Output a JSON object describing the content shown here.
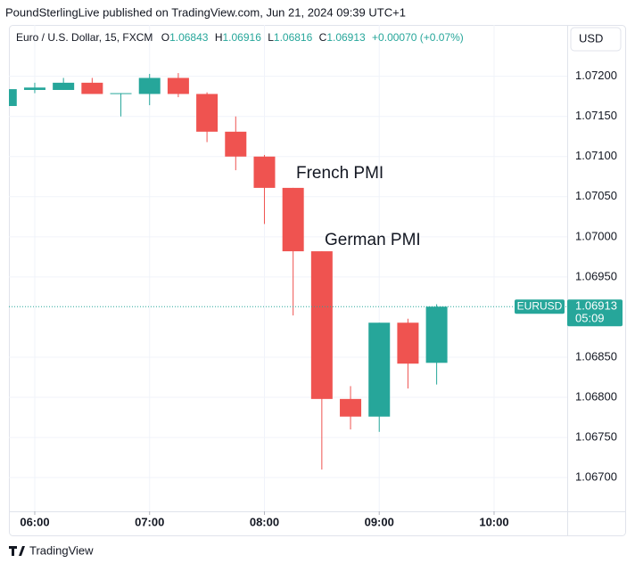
{
  "header": {
    "publisher": "PoundSterlingLive published on TradingView.com, Jun 21, 2024 09:39 UTC+1",
    "footer": "TradingView"
  },
  "chart_data": {
    "type": "candlestick",
    "title": "Euro / U.S. Dollar, 15, FXCM",
    "legend_labels": [
      "O",
      "H",
      "L",
      "C"
    ],
    "change": "+0.00070 (+0.07%)",
    "currency": "USD",
    "symbol": "EURUSD",
    "countdown": "05:09",
    "annotations": [
      "French PMI",
      "German PMI"
    ],
    "up_color": "#26a69a",
    "down_color": "#ef5350",
    "x": [
      5.75,
      6,
      6.25,
      6.5,
      6.75,
      7,
      7.25,
      7.5,
      7.75,
      8,
      8.25,
      8.5,
      8.75,
      9,
      9.25,
      9.5
    ],
    "open": [
      1.07163,
      1.07183,
      1.07183,
      1.07192,
      1.07178,
      1.07178,
      1.07198,
      1.07178,
      1.07131,
      1.071,
      1.07061,
      1.06982,
      1.06798,
      1.06776,
      1.06893,
      1.06843
    ],
    "high": [
      1.07184,
      1.07192,
      1.07198,
      1.07198,
      1.07179,
      1.07203,
      1.07204,
      1.0718,
      1.0715,
      1.07102,
      1.07061,
      1.06982,
      1.06814,
      1.06893,
      1.06898,
      1.06916
    ],
    "low": [
      1.07163,
      1.07179,
      1.07183,
      1.07178,
      1.0715,
      1.07164,
      1.07174,
      1.07118,
      1.07083,
      1.07016,
      1.06902,
      1.0671,
      1.0676,
      1.06757,
      1.06811,
      1.06816
    ],
    "close": [
      1.07184,
      1.07186,
      1.07192,
      1.07178,
      1.07179,
      1.07198,
      1.07178,
      1.07131,
      1.071,
      1.07061,
      1.06982,
      1.06798,
      1.06776,
      1.06893,
      1.06842,
      1.06913
    ],
    "xlim": [
      5.775,
      10.637
    ],
    "xticks": [
      {
        "value": 6,
        "label": "06:00"
      },
      {
        "value": 7,
        "label": "07:00"
      },
      {
        "value": 8,
        "label": "08:00"
      },
      {
        "value": 9,
        "label": "09:00"
      },
      {
        "value": 10,
        "label": "10:00"
      }
    ],
    "ylim": [
      1.06658,
      1.07264
    ],
    "yticks": [
      {
        "value": 1.072,
        "label": "1.07200"
      },
      {
        "value": 1.0715,
        "label": "1.07150"
      },
      {
        "value": 1.071,
        "label": "1.07100"
      },
      {
        "value": 1.0705,
        "label": "1.07050"
      },
      {
        "value": 1.07,
        "label": "1.07000"
      },
      {
        "value": 1.0695,
        "label": "1.06950"
      },
      {
        "value": 1.0685,
        "label": "1.06850"
      },
      {
        "value": 1.068,
        "label": "1.06800"
      },
      {
        "value": 1.0675,
        "label": "1.06750"
      },
      {
        "value": 1.067,
        "label": "1.06700"
      }
    ],
    "grid": true
  }
}
